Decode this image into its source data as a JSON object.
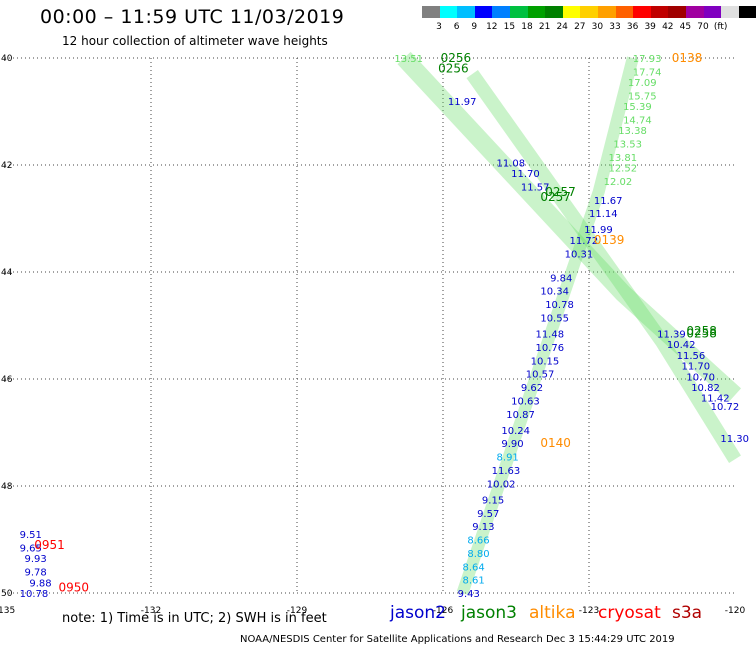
{
  "title": "00:00 – 11:59 UTC 11/03/2019",
  "subtitle": "12 hour collection of altimeter wave heights",
  "colorbar": {
    "colors": [
      "#808080",
      "#00ffff",
      "#00bfff",
      "#0000ff",
      "#0080ff",
      "#00c040",
      "#00a000",
      "#008000",
      "#ffff00",
      "#ffd000",
      "#ffa000",
      "#ff6000",
      "#ff0000",
      "#c00000",
      "#a00000",
      "#a000a0",
      "#8000c0",
      "#e0e0e0",
      "#000000"
    ],
    "labels": [
      "3",
      "6",
      "9",
      "12",
      "15",
      "18",
      "21",
      "24",
      "27",
      "30",
      "33",
      "36",
      "39",
      "42",
      "45",
      "70",
      "(ft)"
    ]
  },
  "axes": {
    "x_ticks": [
      "-135",
      "-132",
      "-129",
      "-126",
      "-123",
      "-120"
    ],
    "y_ticks": [
      "40",
      "42",
      "44",
      "46",
      "48",
      "50"
    ],
    "lon_range": [
      -135,
      -120
    ],
    "lat_range": [
      40,
      50
    ],
    "grid": true
  },
  "satellites": [
    {
      "name": "jason2",
      "color": "#0000cc"
    },
    {
      "name": "jason3",
      "color": "#008000"
    },
    {
      "name": "altika",
      "color": "#ff8c00"
    },
    {
      "name": "cryosat",
      "color": "#ff0000"
    },
    {
      "name": "s3a",
      "color": "#b00000"
    }
  ],
  "note": "note:  1) Time is in UTC;  2) SWH is in feet",
  "credit": "NOAA/NESDIS Center for Satellite Applications and Research    Dec  3 15:44:29 UTC 2019",
  "pass_labels": [
    {
      "text": "0256",
      "lon": -126.05,
      "lat": 40.0,
      "color": "#008000"
    },
    {
      "text": "0256",
      "lon": -126.1,
      "lat": 40.2,
      "color": "#008000"
    },
    {
      "text": "0138",
      "lon": -121.3,
      "lat": 40.0,
      "color": "#ff8c00"
    },
    {
      "text": "0257",
      "lon": -123.9,
      "lat": 42.5,
      "color": "#008000"
    },
    {
      "text": "0257",
      "lon": -124.0,
      "lat": 42.6,
      "color": "#008000"
    },
    {
      "text": "0139",
      "lon": -122.9,
      "lat": 43.4,
      "color": "#ff8c00"
    },
    {
      "text": "0258",
      "lon": -121.0,
      "lat": 45.1,
      "color": "#008000"
    },
    {
      "text": "0258",
      "lon": -121.0,
      "lat": 45.15,
      "color": "#008000"
    },
    {
      "text": "0140",
      "lon": -124.0,
      "lat": 47.2,
      "color": "#ff8c00"
    },
    {
      "text": "0951",
      "lon": -134.4,
      "lat": 49.1,
      "color": "#ff0000"
    },
    {
      "text": "0950",
      "lon": -133.9,
      "lat": 49.9,
      "color": "#ff0000"
    }
  ],
  "swh_points": [
    {
      "v": "13.51",
      "lon": -127.0,
      "lat": 40.0,
      "color": "#66dd66"
    },
    {
      "v": "17.93",
      "lon": -122.1,
      "lat": 40.0,
      "color": "#66dd66"
    },
    {
      "v": "17.74",
      "lon": -122.1,
      "lat": 40.25,
      "color": "#66dd66"
    },
    {
      "v": "17.09",
      "lon": -122.2,
      "lat": 40.45,
      "color": "#66dd66"
    },
    {
      "v": "15.75",
      "lon": -122.2,
      "lat": 40.7,
      "color": "#66dd66"
    },
    {
      "v": "15.39",
      "lon": -122.3,
      "lat": 40.9,
      "color": "#66dd66"
    },
    {
      "v": "14.74",
      "lon": -122.3,
      "lat": 41.15,
      "color": "#66dd66"
    },
    {
      "v": "13.38",
      "lon": -122.4,
      "lat": 41.35,
      "color": "#66dd66"
    },
    {
      "v": "13.53",
      "lon": -122.5,
      "lat": 41.6,
      "color": "#66dd66"
    },
    {
      "v": "13.81",
      "lon": -122.6,
      "lat": 41.85,
      "color": "#66dd66"
    },
    {
      "v": "12.52",
      "lon": -122.6,
      "lat": 42.05,
      "color": "#66dd66"
    },
    {
      "v": "12.02",
      "lon": -122.7,
      "lat": 42.3,
      "color": "#66dd66"
    },
    {
      "v": "11.97",
      "lon": -125.9,
      "lat": 40.8,
      "color": "#0000cc"
    },
    {
      "v": "11.08",
      "lon": -124.9,
      "lat": 41.95,
      "color": "#0000cc"
    },
    {
      "v": "11.70",
      "lon": -124.6,
      "lat": 42.15,
      "color": "#0000cc"
    },
    {
      "v": "11.57",
      "lon": -124.4,
      "lat": 42.4,
      "color": "#0000cc"
    },
    {
      "v": "11.67",
      "lon": -122.9,
      "lat": 42.65,
      "color": "#0000cc"
    },
    {
      "v": "11.14",
      "lon": -123.0,
      "lat": 42.9,
      "color": "#0000cc"
    },
    {
      "v": "11.99",
      "lon": -123.1,
      "lat": 43.2,
      "color": "#0000cc"
    },
    {
      "v": "11.72",
      "lon": -123.4,
      "lat": 43.4,
      "color": "#0000cc"
    },
    {
      "v": "10.31",
      "lon": -123.5,
      "lat": 43.65,
      "color": "#0000cc"
    },
    {
      "v": "9.84",
      "lon": -123.8,
      "lat": 44.1,
      "color": "#0000cc"
    },
    {
      "v": "10.34",
      "lon": -124.0,
      "lat": 44.35,
      "color": "#0000cc"
    },
    {
      "v": "10.78",
      "lon": -123.9,
      "lat": 44.6,
      "color": "#0000cc"
    },
    {
      "v": "10.55",
      "lon": -124.0,
      "lat": 44.85,
      "color": "#0000cc"
    },
    {
      "v": "11.48",
      "lon": -124.1,
      "lat": 45.15,
      "color": "#0000cc"
    },
    {
      "v": "10.76",
      "lon": -124.1,
      "lat": 45.4,
      "color": "#0000cc"
    },
    {
      "v": "10.15",
      "lon": -124.2,
      "lat": 45.65,
      "color": "#0000cc"
    },
    {
      "v": "10.57",
      "lon": -124.3,
      "lat": 45.9,
      "color": "#0000cc"
    },
    {
      "v": "9.62",
      "lon": -124.4,
      "lat": 46.15,
      "color": "#0000cc"
    },
    {
      "v": "10.63",
      "lon": -124.6,
      "lat": 46.4,
      "color": "#0000cc"
    },
    {
      "v": "10.87",
      "lon": -124.7,
      "lat": 46.65,
      "color": "#0000cc"
    },
    {
      "v": "10.24",
      "lon": -124.8,
      "lat": 46.95,
      "color": "#0000cc"
    },
    {
      "v": "9.90",
      "lon": -124.8,
      "lat": 47.2,
      "color": "#0000cc"
    },
    {
      "v": "8.91",
      "lon": -124.9,
      "lat": 47.45,
      "color": "#00aaee"
    },
    {
      "v": "11.63",
      "lon": -125.0,
      "lat": 47.7,
      "color": "#0000cc"
    },
    {
      "v": "10.02",
      "lon": -125.1,
      "lat": 47.95,
      "color": "#0000cc"
    },
    {
      "v": "9.15",
      "lon": -125.2,
      "lat": 48.25,
      "color": "#0000cc"
    },
    {
      "v": "9.57",
      "lon": -125.3,
      "lat": 48.5,
      "color": "#0000cc"
    },
    {
      "v": "9.13",
      "lon": -125.4,
      "lat": 48.75,
      "color": "#0000cc"
    },
    {
      "v": "8.66",
      "lon": -125.5,
      "lat": 49.0,
      "color": "#00aaee"
    },
    {
      "v": "8.80",
      "lon": -125.5,
      "lat": 49.25,
      "color": "#00aaee"
    },
    {
      "v": "8.64",
      "lon": -125.6,
      "lat": 49.5,
      "color": "#00aaee"
    },
    {
      "v": "8.61",
      "lon": -125.6,
      "lat": 49.75,
      "color": "#00aaee"
    },
    {
      "v": "9.43",
      "lon": -125.7,
      "lat": 50.0,
      "color": "#0000cc"
    },
    {
      "v": "11.39",
      "lon": -121.6,
      "lat": 45.15,
      "color": "#0000cc"
    },
    {
      "v": "10.42",
      "lon": -121.4,
      "lat": 45.35,
      "color": "#0000cc"
    },
    {
      "v": "11.56",
      "lon": -121.2,
      "lat": 45.55,
      "color": "#0000cc"
    },
    {
      "v": "11.70",
      "lon": -121.1,
      "lat": 45.75,
      "color": "#0000cc"
    },
    {
      "v": "10.70",
      "lon": -121.0,
      "lat": 45.95,
      "color": "#0000cc"
    },
    {
      "v": "10.82",
      "lon": -120.9,
      "lat": 46.15,
      "color": "#0000cc"
    },
    {
      "v": "11.42",
      "lon": -120.7,
      "lat": 46.35,
      "color": "#0000cc"
    },
    {
      "v": "10.72",
      "lon": -120.5,
      "lat": 46.5,
      "color": "#0000cc"
    },
    {
      "v": "11.30",
      "lon": -120.3,
      "lat": 47.1,
      "color": "#0000cc"
    },
    {
      "v": "9.51",
      "lon": -134.7,
      "lat": 48.9,
      "color": "#0000cc"
    },
    {
      "v": "9.65",
      "lon": -134.7,
      "lat": 49.15,
      "color": "#0000cc"
    },
    {
      "v": "9.93",
      "lon": -134.6,
      "lat": 49.35,
      "color": "#0000cc"
    },
    {
      "v": "9.78",
      "lon": -134.6,
      "lat": 49.6,
      "color": "#0000cc"
    },
    {
      "v": "9.88",
      "lon": -134.5,
      "lat": 49.8,
      "color": "#0000cc"
    },
    {
      "v": "10.78",
      "lon": -134.7,
      "lat": 50.0,
      "color": "#0000cc"
    }
  ]
}
